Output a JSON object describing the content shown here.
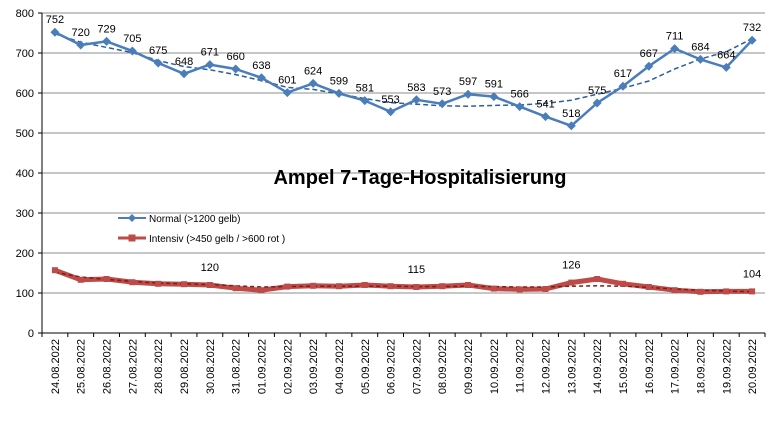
{
  "chart_data": {
    "type": "line",
    "title": "Ampel 7-Tage-Hospitalisierung",
    "xlabel": "",
    "ylabel": "",
    "ylim": [
      0,
      800
    ],
    "ytick_step": 100,
    "grid": true,
    "legend_position": "left-middle",
    "categories": [
      "24.08.2022",
      "25.08.2022",
      "26.08.2022",
      "27.08.2022",
      "28.08.2022",
      "29.08.2022",
      "30.08.2022",
      "31.08.2022",
      "01.09.2022",
      "02.09.2022",
      "03.09.2022",
      "04.09.2022",
      "05.09.2022",
      "06.09.2022",
      "07.09.2022",
      "08.09.2022",
      "09.09.2022",
      "10.09.2022",
      "11.09.2022",
      "12.09.2022",
      "13.09.2022",
      "14.09.2022",
      "15.09.2022",
      "16.09.2022",
      "17.09.2022",
      "18.09.2022",
      "19.09.2022",
      "20.09.2022"
    ],
    "series": [
      {
        "name": "Normal (>1200 gelb)",
        "color": "#4a7ebb",
        "marker": "diamond",
        "values": [
          752,
          720,
          729,
          705,
          675,
          648,
          671,
          660,
          638,
          601,
          624,
          599,
          581,
          553,
          583,
          573,
          597,
          591,
          566,
          541,
          518,
          575,
          617,
          667,
          711,
          684,
          664,
          732
        ],
        "trend": [
          748,
          727,
          714,
          701,
          681,
          666,
          658,
          646,
          631,
          614,
          609,
          598,
          586,
          576,
          572,
          568,
          567,
          569,
          570,
          574,
          582,
          597,
          612,
          630,
          660,
          685,
          703,
          736
        ],
        "labels": [
          752,
          720,
          729,
          705,
          675,
          648,
          671,
          660,
          638,
          601,
          624,
          599,
          581,
          553,
          583,
          573,
          597,
          591,
          566,
          541,
          518,
          575,
          617,
          667,
          711,
          684,
          664,
          732
        ]
      },
      {
        "name": "Intensiv (>450 gelb / >600 rot )",
        "color": "#be4b48",
        "marker": "square",
        "values": [
          157,
          133,
          135,
          127,
          123,
          122,
          120,
          112,
          107,
          116,
          118,
          117,
          120,
          117,
          115,
          117,
          120,
          111,
          109,
          110,
          126,
          135,
          123,
          115,
          107,
          103,
          104,
          104
        ],
        "trend": [
          152,
          140,
          134,
          129,
          125,
          123,
          121,
          118,
          115,
          116,
          117,
          117,
          117,
          117,
          116,
          116,
          117,
          116,
          115,
          115,
          117,
          118,
          117,
          114,
          110,
          107,
          105,
          103
        ],
        "labels": [
          null,
          null,
          null,
          null,
          null,
          null,
          120,
          null,
          null,
          null,
          null,
          null,
          null,
          null,
          115,
          null,
          null,
          null,
          null,
          null,
          126,
          null,
          null,
          null,
          null,
          null,
          null,
          104
        ]
      }
    ]
  }
}
